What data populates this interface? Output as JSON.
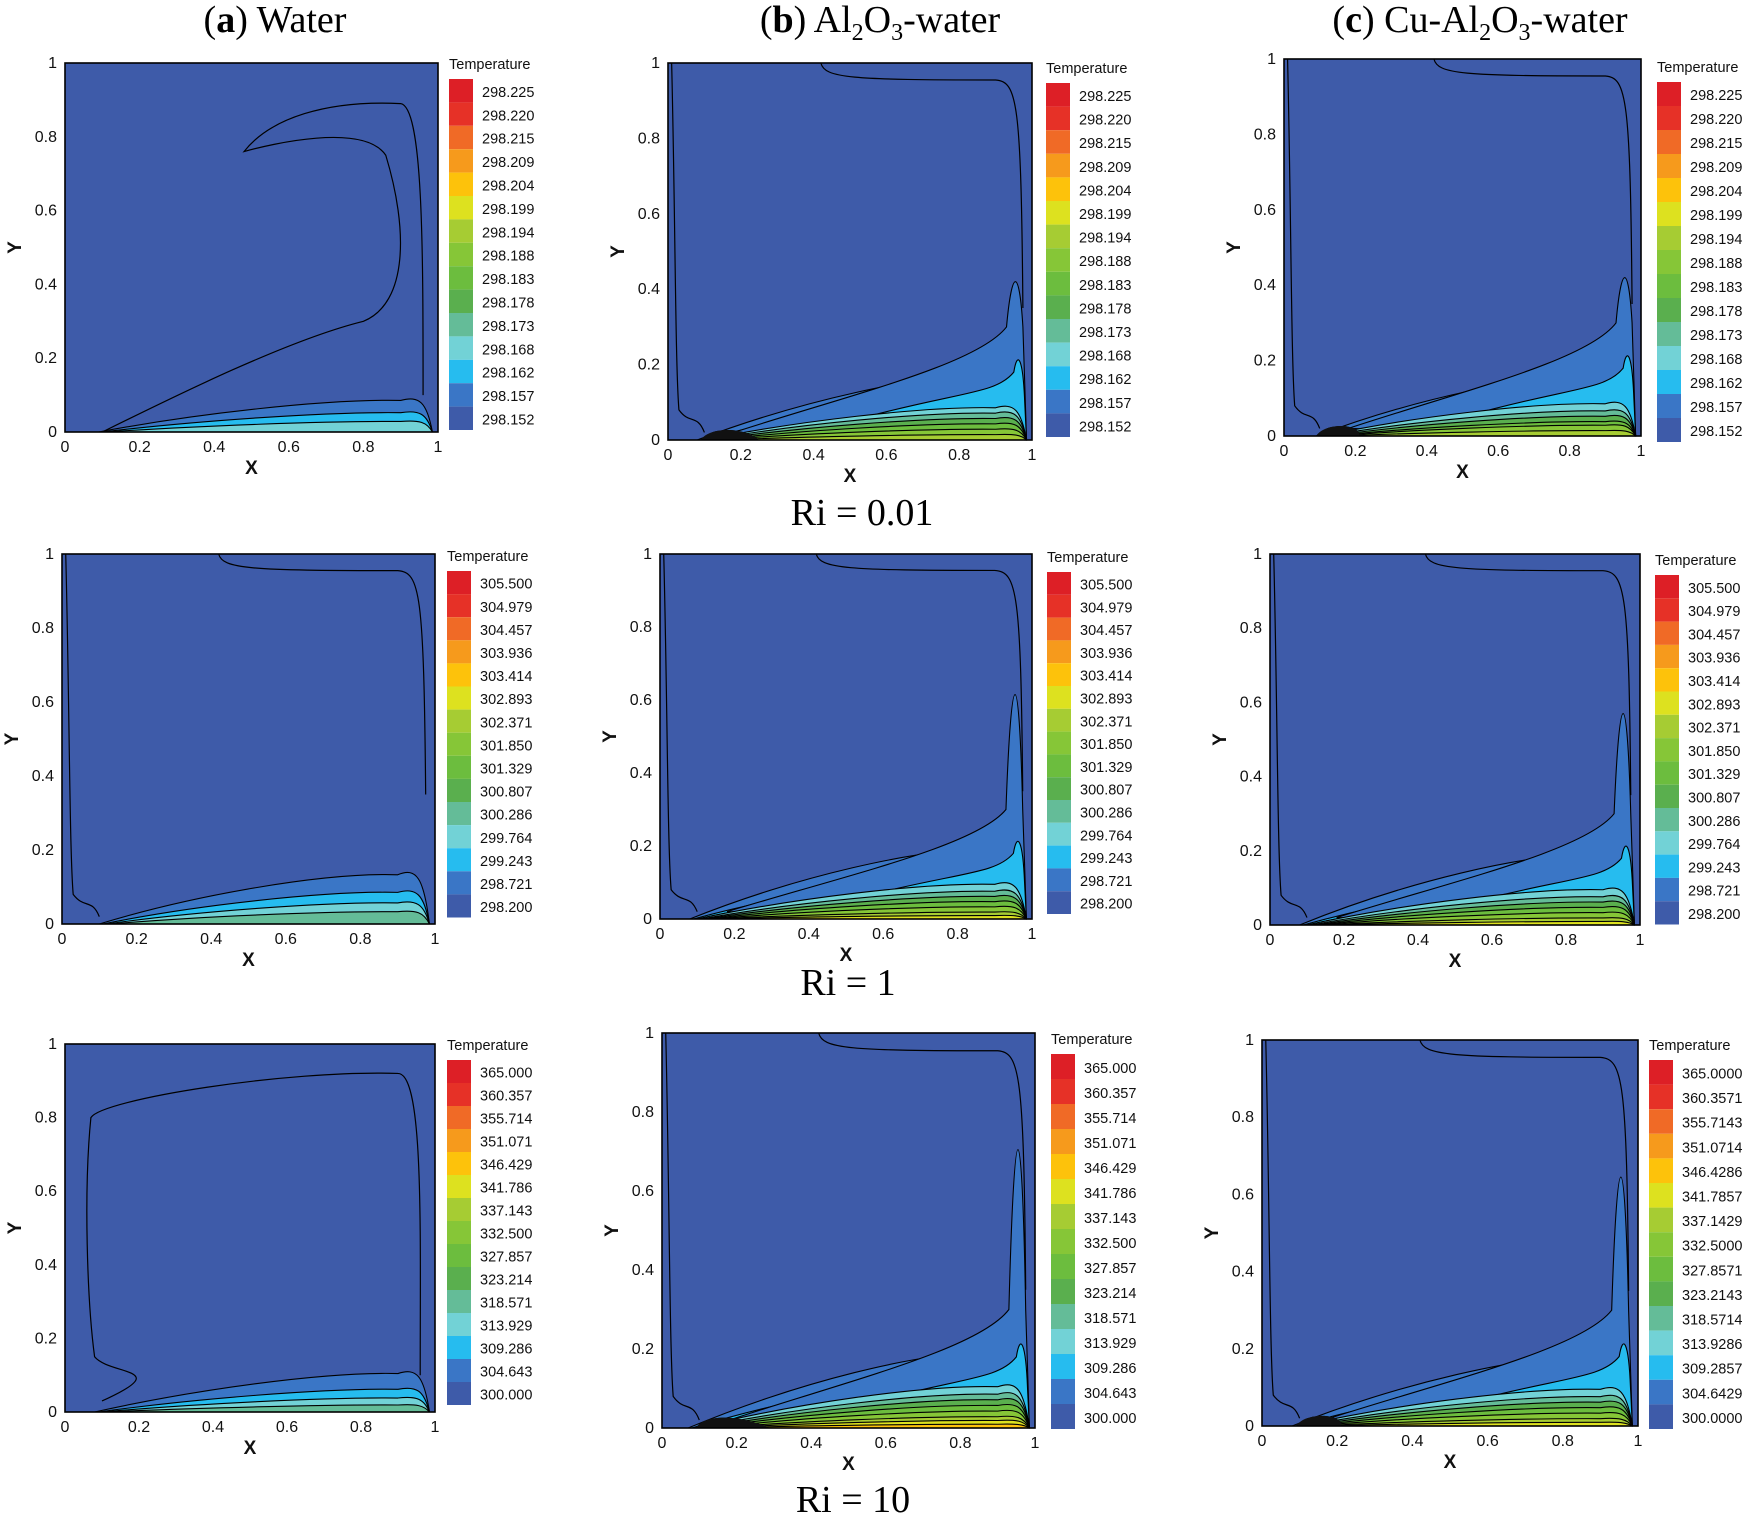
{
  "columns": [
    {
      "letter": "a",
      "name": "Water"
    },
    {
      "letter": "b",
      "name_parts": [
        "Al",
        "2",
        "O",
        "3",
        "-water"
      ]
    },
    {
      "letter": "c",
      "name_parts": [
        "Cu-Al",
        "2",
        "O",
        "3",
        "-water"
      ]
    }
  ],
  "ri_labels": [
    "Ri = 0.01",
    "Ri = 1",
    "Ri = 10"
  ],
  "colors": {
    "background": "#3e5ba9",
    "contour_line": "#000000",
    "palette": [
      "#3e5ba9",
      "#3a76c6",
      "#26bcef",
      "#72d2d6",
      "#64bc98",
      "#5aaf4e",
      "#6cbd3e",
      "#86c637",
      "#a6cc33",
      "#dde11f",
      "#fdc20b",
      "#f69a1c",
      "#f06a26",
      "#e63127",
      "#dd1f26"
    ]
  },
  "chart_data": [
    {
      "type": "heatmap",
      "title": "(a) Water, Ri = 0.01",
      "xlabel": "X",
      "ylabel": "Y",
      "xlim": [
        0,
        1
      ],
      "ylim": [
        0,
        1
      ],
      "xticks": [
        "0",
        "0.2",
        "0.4",
        "0.6",
        "0.8",
        "1"
      ],
      "yticks": [
        "0",
        "0.2",
        "0.4",
        "0.6",
        "0.8",
        "1"
      ],
      "legend_title": "Temperature",
      "legend_values": [
        "298.225",
        "298.220",
        "298.215",
        "298.209",
        "298.204",
        "298.199",
        "298.194",
        "298.188",
        "298.183",
        "298.178",
        "298.173",
        "298.168",
        "298.162",
        "298.157",
        "298.152"
      ]
    },
    {
      "type": "heatmap",
      "title": "(b) Al2O3-water, Ri = 0.01",
      "xlabel": "X",
      "ylabel": "Y",
      "xlim": [
        0,
        1
      ],
      "ylim": [
        0,
        1
      ],
      "xticks": [
        "0",
        "0.2",
        "0.4",
        "0.6",
        "0.8",
        "1"
      ],
      "yticks": [
        "0",
        "0.2",
        "0.4",
        "0.6",
        "0.8",
        "1"
      ],
      "legend_title": "Temperature",
      "legend_values": [
        "298.225",
        "298.220",
        "298.215",
        "298.209",
        "298.204",
        "298.199",
        "298.194",
        "298.188",
        "298.183",
        "298.178",
        "298.173",
        "298.168",
        "298.162",
        "298.157",
        "298.152"
      ]
    },
    {
      "type": "heatmap",
      "title": "(c) Cu-Al2O3-water, Ri = 0.01",
      "xlabel": "X",
      "ylabel": "Y",
      "xlim": [
        0,
        1
      ],
      "ylim": [
        0,
        1
      ],
      "xticks": [
        "0",
        "0.2",
        "0.4",
        "0.6",
        "0.8",
        "1"
      ],
      "yticks": [
        "0",
        "0.2",
        "0.4",
        "0.6",
        "0.8",
        "1"
      ],
      "legend_title": "Temperature",
      "legend_values": [
        "298.225",
        "298.220",
        "298.215",
        "298.209",
        "298.204",
        "298.199",
        "298.194",
        "298.188",
        "298.183",
        "298.178",
        "298.173",
        "298.168",
        "298.162",
        "298.157",
        "298.152"
      ]
    },
    {
      "type": "heatmap",
      "title": "(a) Water, Ri = 1",
      "xlabel": "X",
      "ylabel": "Y",
      "xlim": [
        0,
        1
      ],
      "ylim": [
        0,
        1
      ],
      "xticks": [
        "0",
        "0.2",
        "0.4",
        "0.6",
        "0.8",
        "1"
      ],
      "yticks": [
        "0",
        "0.2",
        "0.4",
        "0.6",
        "0.8",
        "1"
      ],
      "legend_title": "Temperature",
      "legend_values": [
        "305.500",
        "304.979",
        "304.457",
        "303.936",
        "303.414",
        "302.893",
        "302.371",
        "301.850",
        "301.329",
        "300.807",
        "300.286",
        "299.764",
        "299.243",
        "298.721",
        "298.200"
      ]
    },
    {
      "type": "heatmap",
      "title": "(b) Al2O3-water, Ri = 1",
      "xlabel": "X",
      "ylabel": "Y",
      "xlim": [
        0,
        1
      ],
      "ylim": [
        0,
        1
      ],
      "xticks": [
        "0",
        "0.2",
        "0.4",
        "0.6",
        "0.8",
        "1"
      ],
      "yticks": [
        "0",
        "0.2",
        "0.4",
        "0.6",
        "0.8",
        "1"
      ],
      "legend_title": "Temperature",
      "legend_values": [
        "305.500",
        "304.979",
        "304.457",
        "303.936",
        "303.414",
        "302.893",
        "302.371",
        "301.850",
        "301.329",
        "300.807",
        "300.286",
        "299.764",
        "299.243",
        "298.721",
        "298.200"
      ]
    },
    {
      "type": "heatmap",
      "title": "(c) Cu-Al2O3-water, Ri = 1",
      "xlabel": "X",
      "ylabel": "Y",
      "xlim": [
        0,
        1
      ],
      "ylim": [
        0,
        1
      ],
      "xticks": [
        "0",
        "0.2",
        "0.4",
        "0.6",
        "0.8",
        "1"
      ],
      "yticks": [
        "0",
        "0.2",
        "0.4",
        "0.6",
        "0.8",
        "1"
      ],
      "legend_title": "Temperature",
      "legend_values": [
        "305.500",
        "304.979",
        "304.457",
        "303.936",
        "303.414",
        "302.893",
        "302.371",
        "301.850",
        "301.329",
        "300.807",
        "300.286",
        "299.764",
        "299.243",
        "298.721",
        "298.200"
      ]
    },
    {
      "type": "heatmap",
      "title": "(a) Water, Ri = 10",
      "xlabel": "X",
      "ylabel": "Y",
      "xlim": [
        0,
        1
      ],
      "ylim": [
        0,
        1
      ],
      "xticks": [
        "0",
        "0.2",
        "0.4",
        "0.6",
        "0.8",
        "1"
      ],
      "yticks": [
        "0",
        "0.2",
        "0.4",
        "0.6",
        "0.8",
        "1"
      ],
      "legend_title": "Temperature",
      "legend_values": [
        "365.000",
        "360.357",
        "355.714",
        "351.071",
        "346.429",
        "341.786",
        "337.143",
        "332.500",
        "327.857",
        "323.214",
        "318.571",
        "313.929",
        "309.286",
        "304.643",
        "300.000"
      ]
    },
    {
      "type": "heatmap",
      "title": "(b) Al2O3-water, Ri = 10",
      "xlabel": "X",
      "ylabel": "Y",
      "xlim": [
        0,
        1
      ],
      "ylim": [
        0,
        1
      ],
      "xticks": [
        "0",
        "0.2",
        "0.4",
        "0.6",
        "0.8",
        "1"
      ],
      "yticks": [
        "0",
        "0.2",
        "0.4",
        "0.6",
        "0.8",
        "1"
      ],
      "legend_title": "Temperature",
      "legend_values": [
        "365.000",
        "360.357",
        "355.714",
        "351.071",
        "346.429",
        "341.786",
        "337.143",
        "332.500",
        "327.857",
        "323.214",
        "318.571",
        "313.929",
        "309.286",
        "304.643",
        "300.000"
      ]
    },
    {
      "type": "heatmap",
      "title": "(c) Cu-Al2O3-water, Ri = 10",
      "xlabel": "X",
      "ylabel": "Y",
      "xlim": [
        0,
        1
      ],
      "ylim": [
        0,
        1
      ],
      "xticks": [
        "0",
        "0.2",
        "0.4",
        "0.6",
        "0.8",
        "1"
      ],
      "yticks": [
        "0",
        "0.2",
        "0.4",
        "0.6",
        "0.8",
        "1"
      ],
      "legend_title": "Temperature",
      "legend_values": [
        "365.0000",
        "360.3571",
        "355.7143",
        "351.0714",
        "346.4286",
        "341.7857",
        "337.1429",
        "332.5000",
        "327.8571",
        "323.2143",
        "318.5714",
        "313.9286",
        "309.2857",
        "304.6429",
        "300.0000"
      ]
    }
  ]
}
